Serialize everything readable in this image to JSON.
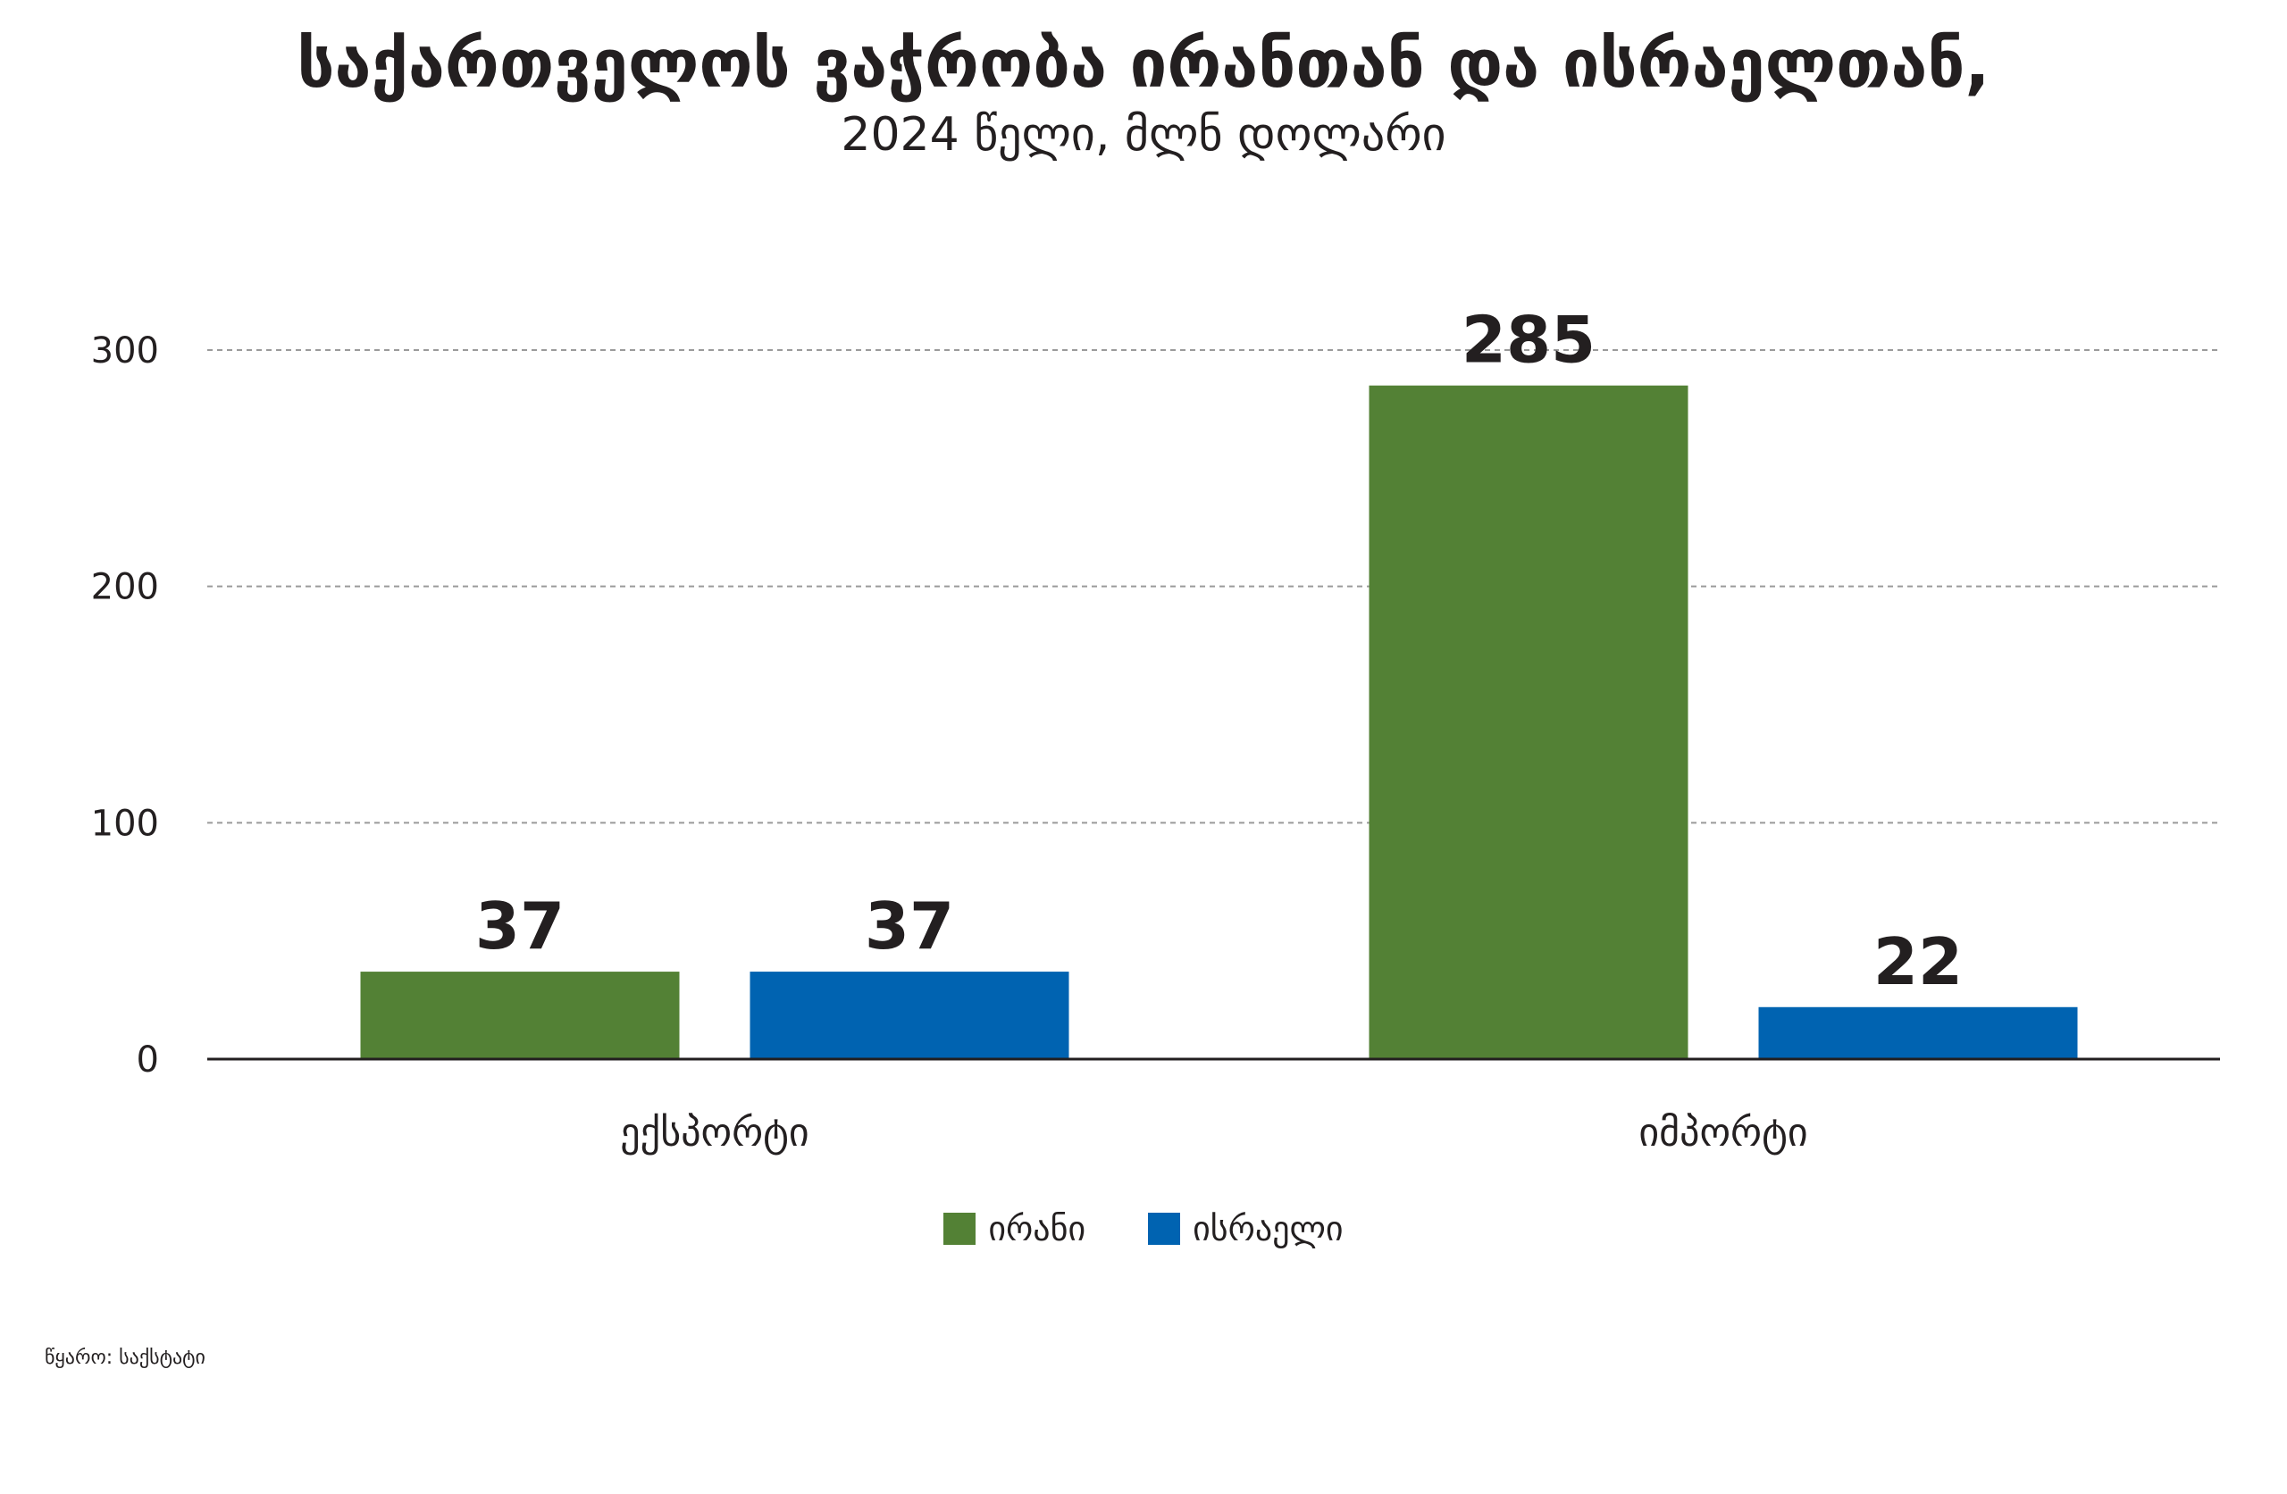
{
  "chart_data": {
    "type": "bar",
    "title": "საქართველოს ვაჭრობა ირანთან და ისრაელთან,",
    "subtitle": "2024 წელი, მლნ დოლარი",
    "categories": [
      "ექსპორტი",
      "იმპორტი"
    ],
    "series": [
      {
        "name": "ირანი",
        "color": "#538135",
        "values": [
          37,
          285
        ]
      },
      {
        "name": "ისრაელი",
        "color": "#0063b1",
        "values": [
          37,
          22
        ]
      }
    ],
    "yticks": [
      0,
      100,
      200,
      300
    ],
    "ylim": [
      0,
      300
    ],
    "grid": true,
    "grid_style": "dashed",
    "legend_position": "bottom-center",
    "data_labels": true
  },
  "source": "წყარო: საქსტატი"
}
